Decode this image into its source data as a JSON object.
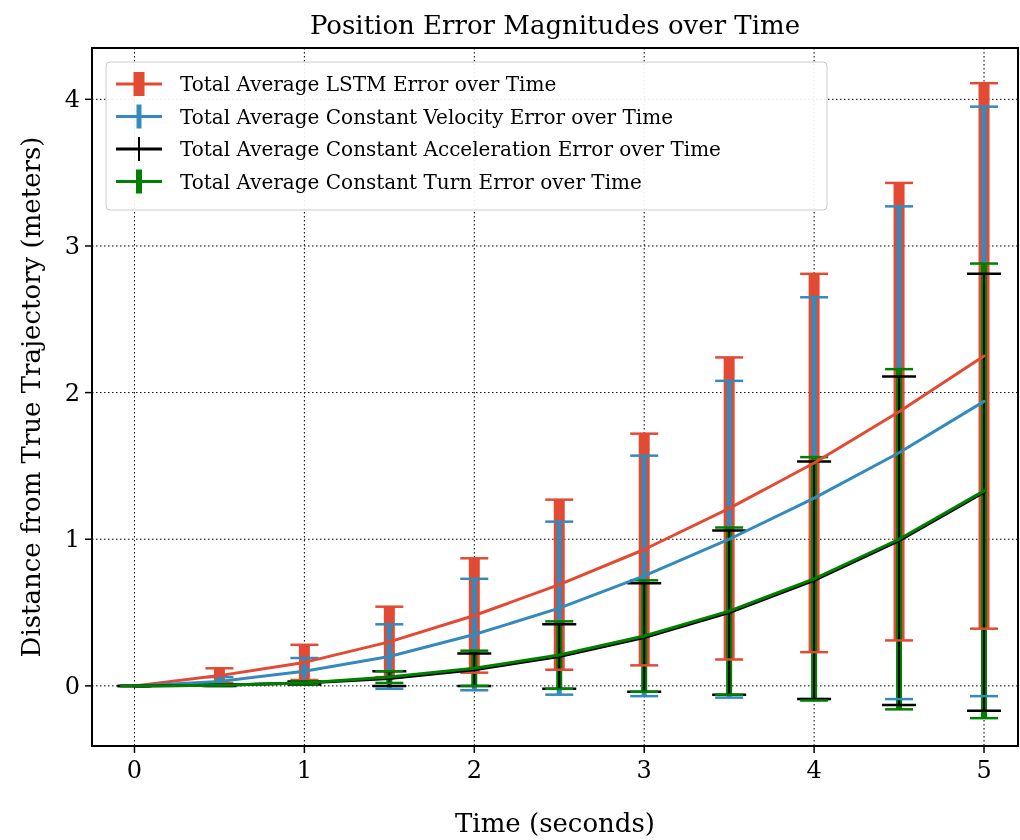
{
  "chart_data": {
    "type": "line",
    "title": "Position Error Magnitudes over Time",
    "xlabel": "Time (seconds)",
    "ylabel": "Distance from True Trajectory (meters)",
    "x": [
      0,
      0.5,
      1,
      1.5,
      2,
      2.5,
      3,
      3.5,
      4,
      4.5,
      5
    ],
    "series": [
      {
        "name": "Total Average LSTM Error over Time",
        "color": "#e24a33",
        "values": [
          0,
          0.07,
          0.16,
          0.3,
          0.48,
          0.69,
          0.93,
          1.21,
          1.52,
          1.87,
          2.25
        ],
        "errors": [
          0,
          0.05,
          0.12,
          0.24,
          0.39,
          0.58,
          0.79,
          1.03,
          1.29,
          1.56,
          1.86
        ]
      },
      {
        "name": "Total Average Constant Velocity Error over Time",
        "color": "#348abd",
        "values": [
          0,
          0.03,
          0.1,
          0.2,
          0.35,
          0.53,
          0.75,
          1.0,
          1.28,
          1.59,
          1.94
        ],
        "errors": [
          0,
          0.03,
          0.09,
          0.22,
          0.38,
          0.59,
          0.82,
          1.08,
          1.37,
          1.68,
          2.01
        ]
      },
      {
        "name": "Total Average Constant Acceleration Error over Time",
        "color": "#000000",
        "values": [
          0,
          0.005,
          0.02,
          0.05,
          0.11,
          0.2,
          0.33,
          0.5,
          0.72,
          0.99,
          1.32
        ],
        "errors": [
          0,
          0.005,
          0.01,
          0.05,
          0.11,
          0.22,
          0.37,
          0.56,
          0.81,
          1.12,
          1.49
        ]
      },
      {
        "name": "Total Average Constant Turn Error over Time",
        "color": "#008000",
        "values": [
          0,
          0.005,
          0.02,
          0.06,
          0.12,
          0.21,
          0.34,
          0.51,
          0.73,
          1.0,
          1.33
        ],
        "errors": [
          0,
          0.005,
          0.01,
          0.04,
          0.12,
          0.23,
          0.38,
          0.57,
          0.83,
          1.16,
          1.55
        ]
      }
    ],
    "xlim": [
      -0.25,
      5.2
    ],
    "ylim": [
      -0.41,
      4.35
    ],
    "xticks": [
      0,
      1,
      2,
      3,
      4,
      5
    ],
    "yticks": [
      0,
      1,
      2,
      3,
      4
    ],
    "grid": true,
    "legend": "top left",
    "marker": "none",
    "line_style": "solid"
  }
}
